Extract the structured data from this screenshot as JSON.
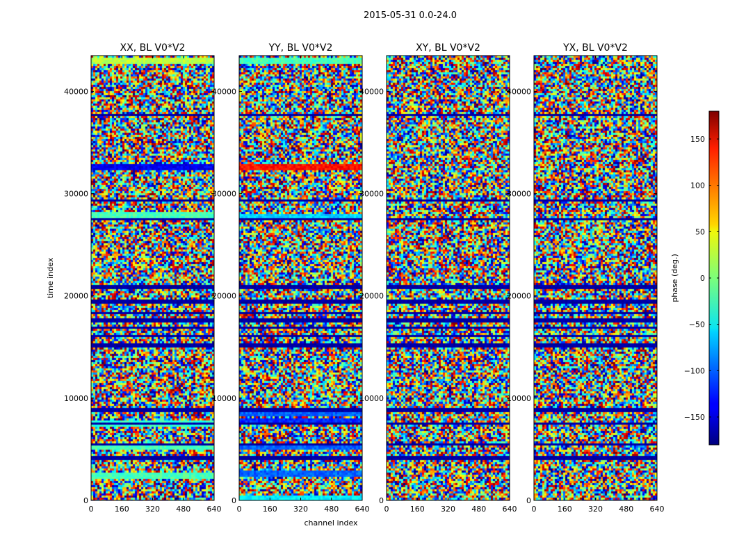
{
  "figure": {
    "title": "2015-05-31 0.0-24.0"
  },
  "chart_data": {
    "type": "heatmap",
    "panels": [
      {
        "title": "XX, BL V0*V2"
      },
      {
        "title": "YY, BL V0*V2"
      },
      {
        "title": "XY, BL V0*V2"
      },
      {
        "title": "YX, BL V0*V2"
      }
    ],
    "xlabel": "channel index",
    "ylabel": "time index",
    "xlim": [
      0,
      640
    ],
    "ylim": [
      0,
      43500
    ],
    "xticks": [
      0,
      160,
      320,
      480,
      640
    ],
    "yticks": [
      0,
      10000,
      20000,
      30000,
      40000
    ],
    "colorbar": {
      "label": "phase (deg.)",
      "range": [
        -180,
        180
      ],
      "ticks": [
        150,
        100,
        50,
        0,
        -50,
        -100,
        -150
      ],
      "colormap": "jet"
    },
    "dark_rows_time_index": [
      37800,
      29400,
      27600,
      21000,
      19600,
      18400,
      17700,
      17000,
      16200,
      15200,
      8900,
      7600,
      5600,
      4300
    ],
    "phase_coherent_rows": [
      {
        "panel": "XX, BL V0*V2",
        "time_index": 43000,
        "phase_deg": 20
      },
      {
        "panel": "XX, BL V0*V2",
        "time_index": 32600,
        "phase_deg": -140
      },
      {
        "panel": "XX, BL V0*V2",
        "time_index": 28000,
        "phase_deg": -20
      },
      {
        "panel": "XX, BL V0*V2",
        "time_index": 7600,
        "phase_deg": -30
      },
      {
        "panel": "XX, BL V0*V2",
        "time_index": 5300,
        "phase_deg": -20
      },
      {
        "panel": "XX, BL V0*V2",
        "time_index": 2600,
        "phase_deg": -20
      },
      {
        "panel": "YY, BL V0*V2",
        "time_index": 43000,
        "phase_deg": -20
      },
      {
        "panel": "YY, BL V0*V2",
        "time_index": 32600,
        "phase_deg": 130
      },
      {
        "panel": "YY, BL V0*V2",
        "time_index": 27800,
        "phase_deg": -60
      },
      {
        "panel": "YY, BL V0*V2",
        "time_index": 8700,
        "phase_deg": -100
      },
      {
        "panel": "YY, BL V0*V2",
        "time_index": 7800,
        "phase_deg": -120
      },
      {
        "panel": "YY, BL V0*V2",
        "time_index": 5300,
        "phase_deg": -100
      },
      {
        "panel": "YY, BL V0*V2",
        "time_index": 2700,
        "phase_deg": -100
      },
      {
        "panel": "YY, BL V0*V2",
        "time_index": 300,
        "phase_deg": -50
      }
    ]
  }
}
